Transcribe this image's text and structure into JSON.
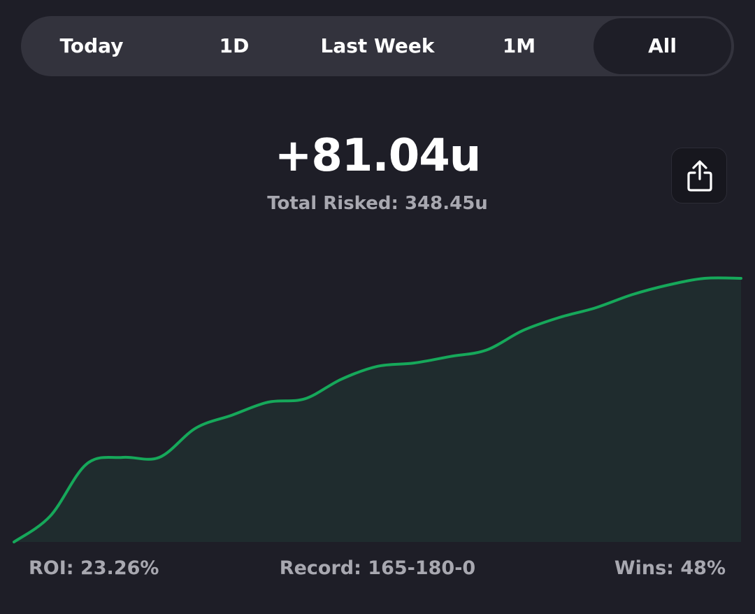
{
  "tabs": [
    {
      "label": "Today",
      "active": false
    },
    {
      "label": "1D",
      "active": false
    },
    {
      "label": "Last Week",
      "active": false
    },
    {
      "label": "1M",
      "active": false
    },
    {
      "label": "All",
      "active": true
    }
  ],
  "summary": {
    "total_units": "+81.04u",
    "total_risked": "Total Risked: 348.45u"
  },
  "share_button": {
    "icon": "share-icon"
  },
  "stats": {
    "roi": "ROI: 23.26%",
    "record": "Record: 165-180-0",
    "wins": "Wins: 48%"
  },
  "colors": {
    "background": "#1e1e27",
    "tab_bar": "#33333d",
    "line": "#16a85a",
    "fill": "#1f2c2e",
    "muted_text": "#a8a8b0"
  },
  "chart_data": {
    "type": "area",
    "title": "",
    "xlabel": "",
    "ylabel": "",
    "ylim": [
      0,
      81.04
    ],
    "x": [
      0,
      0.05,
      0.1,
      0.15,
      0.2,
      0.25,
      0.3,
      0.35,
      0.4,
      0.45,
      0.5,
      0.55,
      0.6,
      0.65,
      0.7,
      0.75,
      0.8,
      0.85,
      0.9,
      0.95,
      1.0
    ],
    "series": [
      {
        "values": [
          0,
          8,
          24,
          26,
          26,
          35,
          39,
          43,
          44,
          50,
          54,
          55,
          57,
          59,
          65,
          69,
          72,
          76,
          79,
          81.04,
          81.04
        ]
      }
    ]
  }
}
